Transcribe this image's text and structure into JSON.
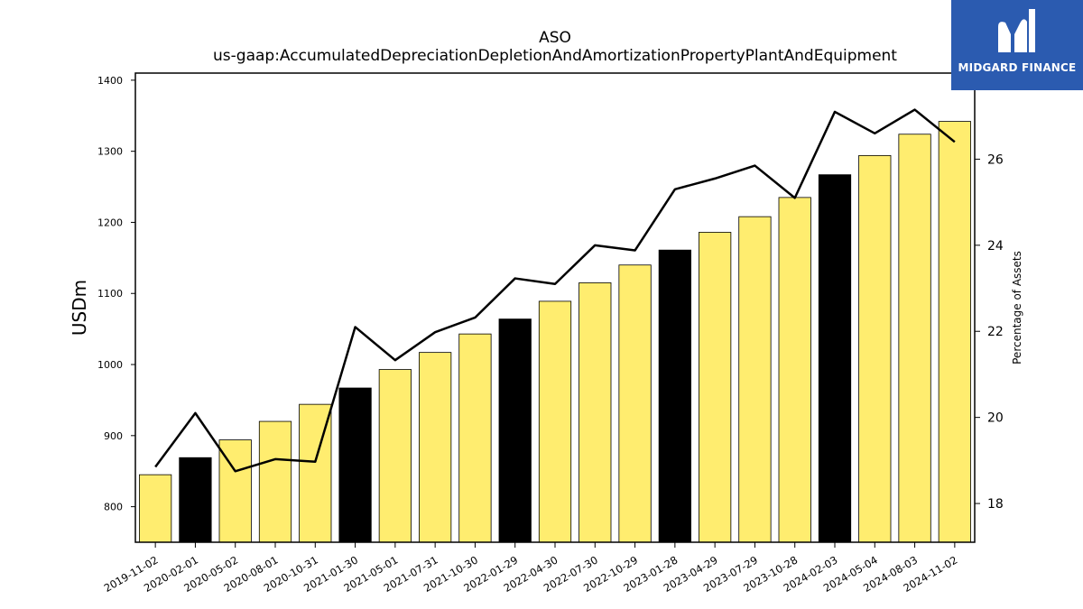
{
  "chart_data": {
    "type": "bar",
    "title": "ASO",
    "subtitle": "us-gaap:AccumulatedDepreciationDepletionAndAmortizationPropertyPlantAndEquipment",
    "ylabel": "USDm",
    "y2label": "Percentage of Assets",
    "ylim": [
      750,
      1410
    ],
    "y2lim": [
      17.1,
      28.0
    ],
    "yticks": [
      "800",
      "900",
      "1000",
      "1100",
      "1200",
      "1300",
      "1400"
    ],
    "y2ticks": [
      "18",
      "20",
      "22",
      "24",
      "26"
    ],
    "categories": [
      "2019-11-02",
      "2020-02-01",
      "2020-05-02",
      "2020-08-01",
      "2020-10-31",
      "2021-01-30",
      "2021-05-01",
      "2021-07-31",
      "2021-10-30",
      "2022-01-29",
      "2022-04-30",
      "2022-07-30",
      "2022-10-29",
      "2023-01-28",
      "2023-04-29",
      "2023-07-29",
      "2023-10-28",
      "2024-02-03",
      "2024-05-04",
      "2024-08-03",
      "2024-11-02"
    ],
    "series": [
      {
        "type": "bar",
        "axis": "left",
        "values": [
          845,
          869,
          894,
          920,
          944,
          967,
          993,
          1017,
          1043,
          1064,
          1089,
          1115,
          1140,
          1161,
          1186,
          1208,
          1235,
          1267,
          1294,
          1324,
          1342
        ],
        "colors": [
          "#ffed6f",
          "#000000",
          "#ffed6f",
          "#ffed6f",
          "#ffed6f",
          "#000000",
          "#ffed6f",
          "#ffed6f",
          "#ffed6f",
          "#000000",
          "#ffed6f",
          "#ffed6f",
          "#ffed6f",
          "#000000",
          "#ffed6f",
          "#ffed6f",
          "#ffed6f",
          "#000000",
          "#ffed6f",
          "#ffed6f",
          "#ffed6f"
        ]
      },
      {
        "type": "line",
        "axis": "right",
        "color": "#000000",
        "values": [
          18.85,
          20.1,
          18.75,
          19.03,
          18.97,
          22.1,
          21.33,
          21.98,
          22.32,
          23.23,
          23.1,
          24.0,
          23.88,
          25.3,
          25.55,
          25.85,
          25.1,
          27.1,
          26.6,
          27.15,
          26.4
        ]
      }
    ],
    "grid": false,
    "legend": "none"
  },
  "logo": {
    "text": "MIDGARD FINANCE"
  }
}
